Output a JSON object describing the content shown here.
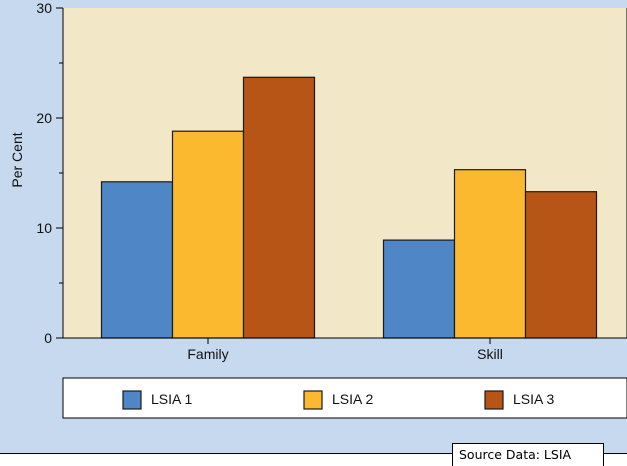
{
  "colors": {
    "figure_background": "#c6d9ee",
    "plot_background": "#f2e7c6",
    "series": [
      "#4e86c6",
      "#fbb930",
      "#b75516"
    ]
  },
  "chart_data": {
    "type": "bar",
    "title": "",
    "xlabel": "",
    "ylabel": "Per Cent",
    "categories": [
      "Family",
      "Skill"
    ],
    "series": [
      {
        "name": "LSIA 1",
        "values": [
          14.2,
          8.9
        ]
      },
      {
        "name": "LSIA 2",
        "values": [
          18.8,
          15.3
        ]
      },
      {
        "name": "LSIA 3",
        "values": [
          23.7,
          13.3
        ]
      }
    ],
    "ylim": [
      0,
      30
    ],
    "yticks": [
      0,
      10,
      20,
      30
    ],
    "grid": false,
    "legend_position": "bottom"
  },
  "source_note": "Source Data: LSIA"
}
